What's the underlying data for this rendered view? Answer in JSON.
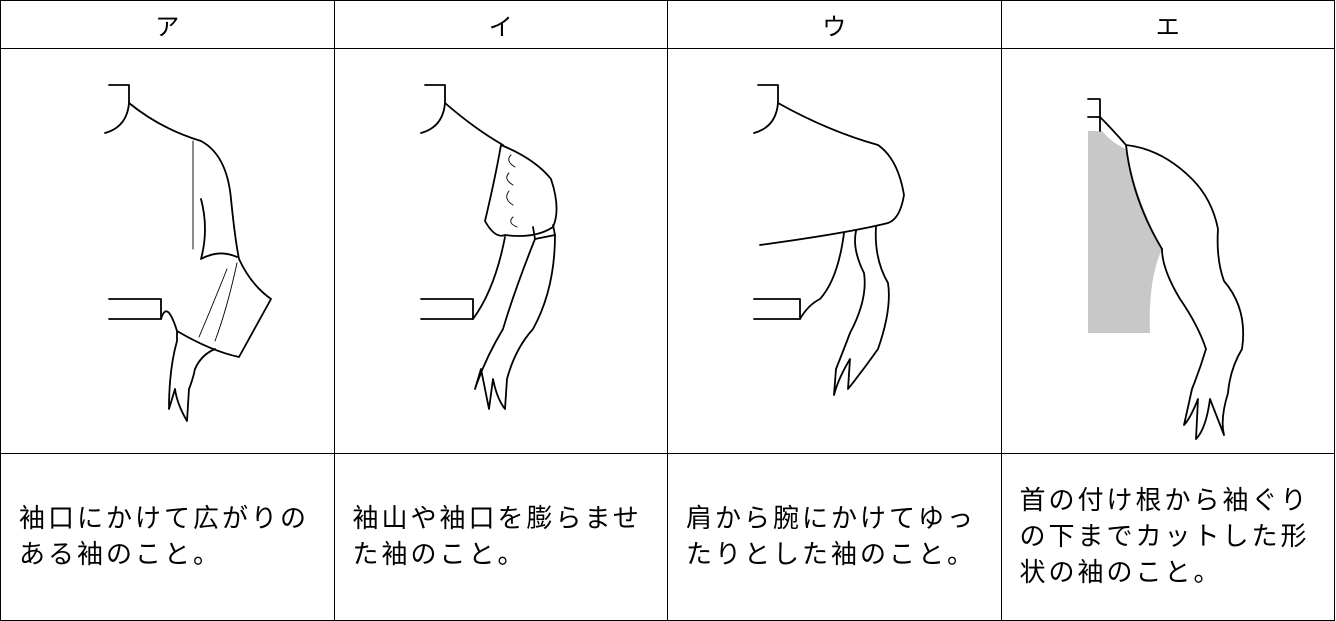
{
  "table": {
    "header": [
      "ア",
      "イ",
      "ウ",
      "エ"
    ],
    "descriptions": [
      [
        "袖口にかけて広がりの",
        "ある袖のこと。"
      ],
      [
        "袖山や袖口を膨らませ",
        "た袖のこと。"
      ],
      [
        "肩から腕にかけてゆっ",
        "たりとした袖のこと。"
      ],
      [
        "首の付け根から袖ぐり",
        "の下までカットした形",
        "状の袖のこと。"
      ]
    ]
  }
}
